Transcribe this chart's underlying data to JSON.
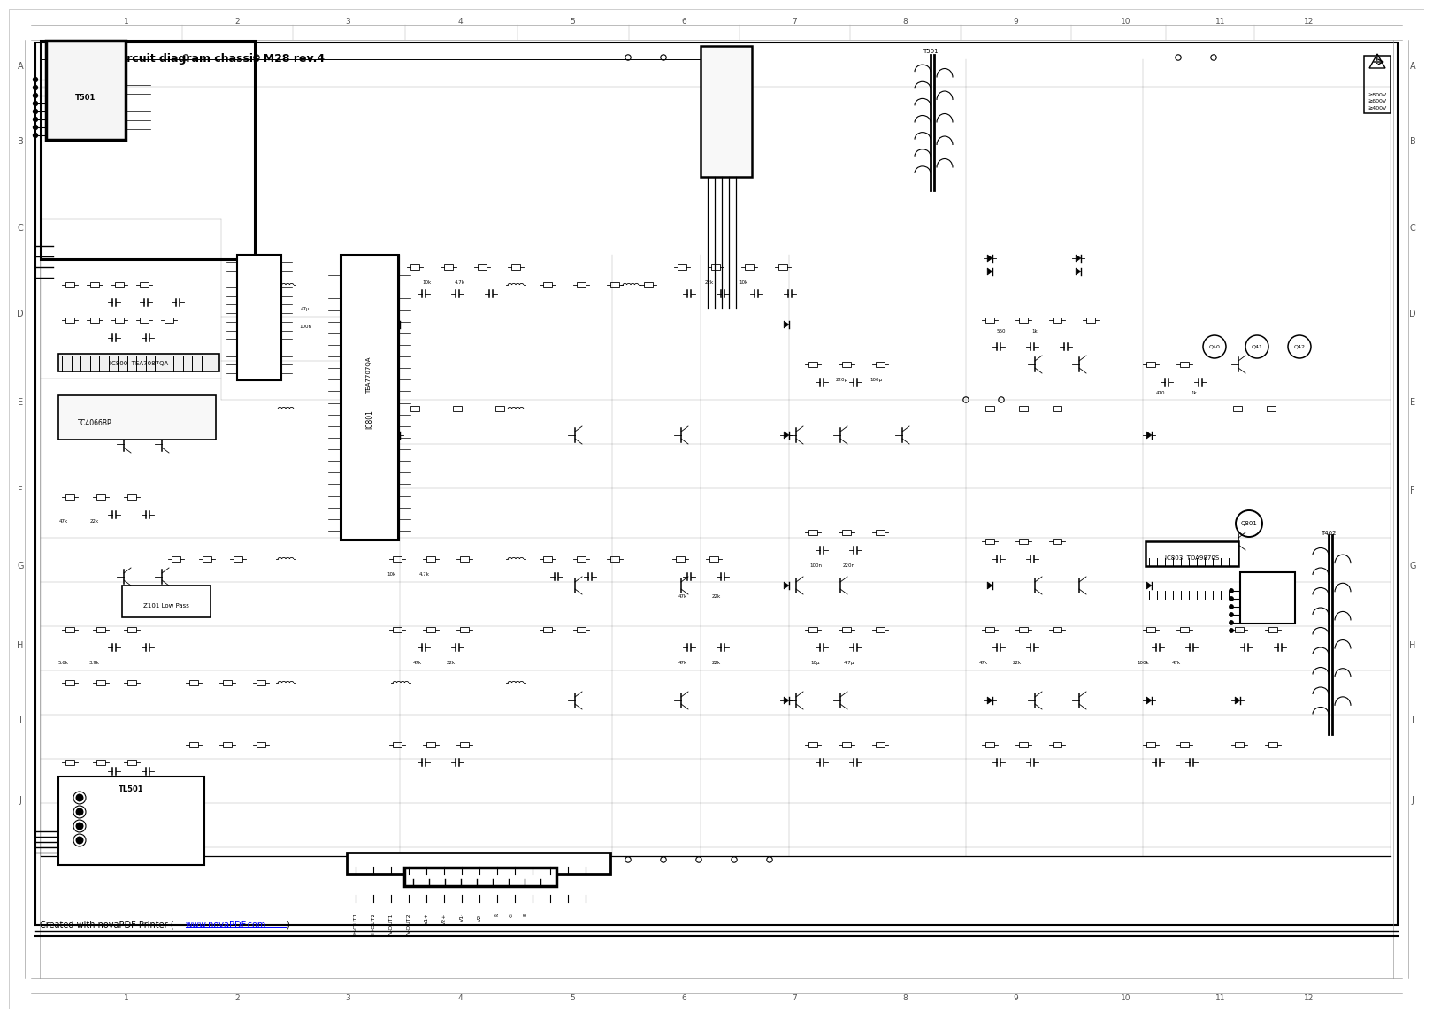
{
  "title": "Circuit diagram chassis M28 rev.4",
  "footer_prefix": "Created with novaPDF Printer (",
  "footer_url": "www.novaPDF.com",
  "footer_suffix": ")",
  "background_color": "#ffffff",
  "border_color": "#000000",
  "grid_color": "#999999",
  "text_color": "#000000",
  "title_fontsize": 9,
  "label_fontsize": 6,
  "col_labels": [
    "1",
    "2",
    "3",
    "4",
    "5",
    "6",
    "7",
    "8",
    "9",
    "10",
    "11",
    "12"
  ],
  "row_labels": [
    "A",
    "B",
    "C",
    "D",
    "E",
    "F",
    "G",
    "H",
    "I",
    "J"
  ],
  "fig_width": 16.0,
  "fig_height": 11.31
}
